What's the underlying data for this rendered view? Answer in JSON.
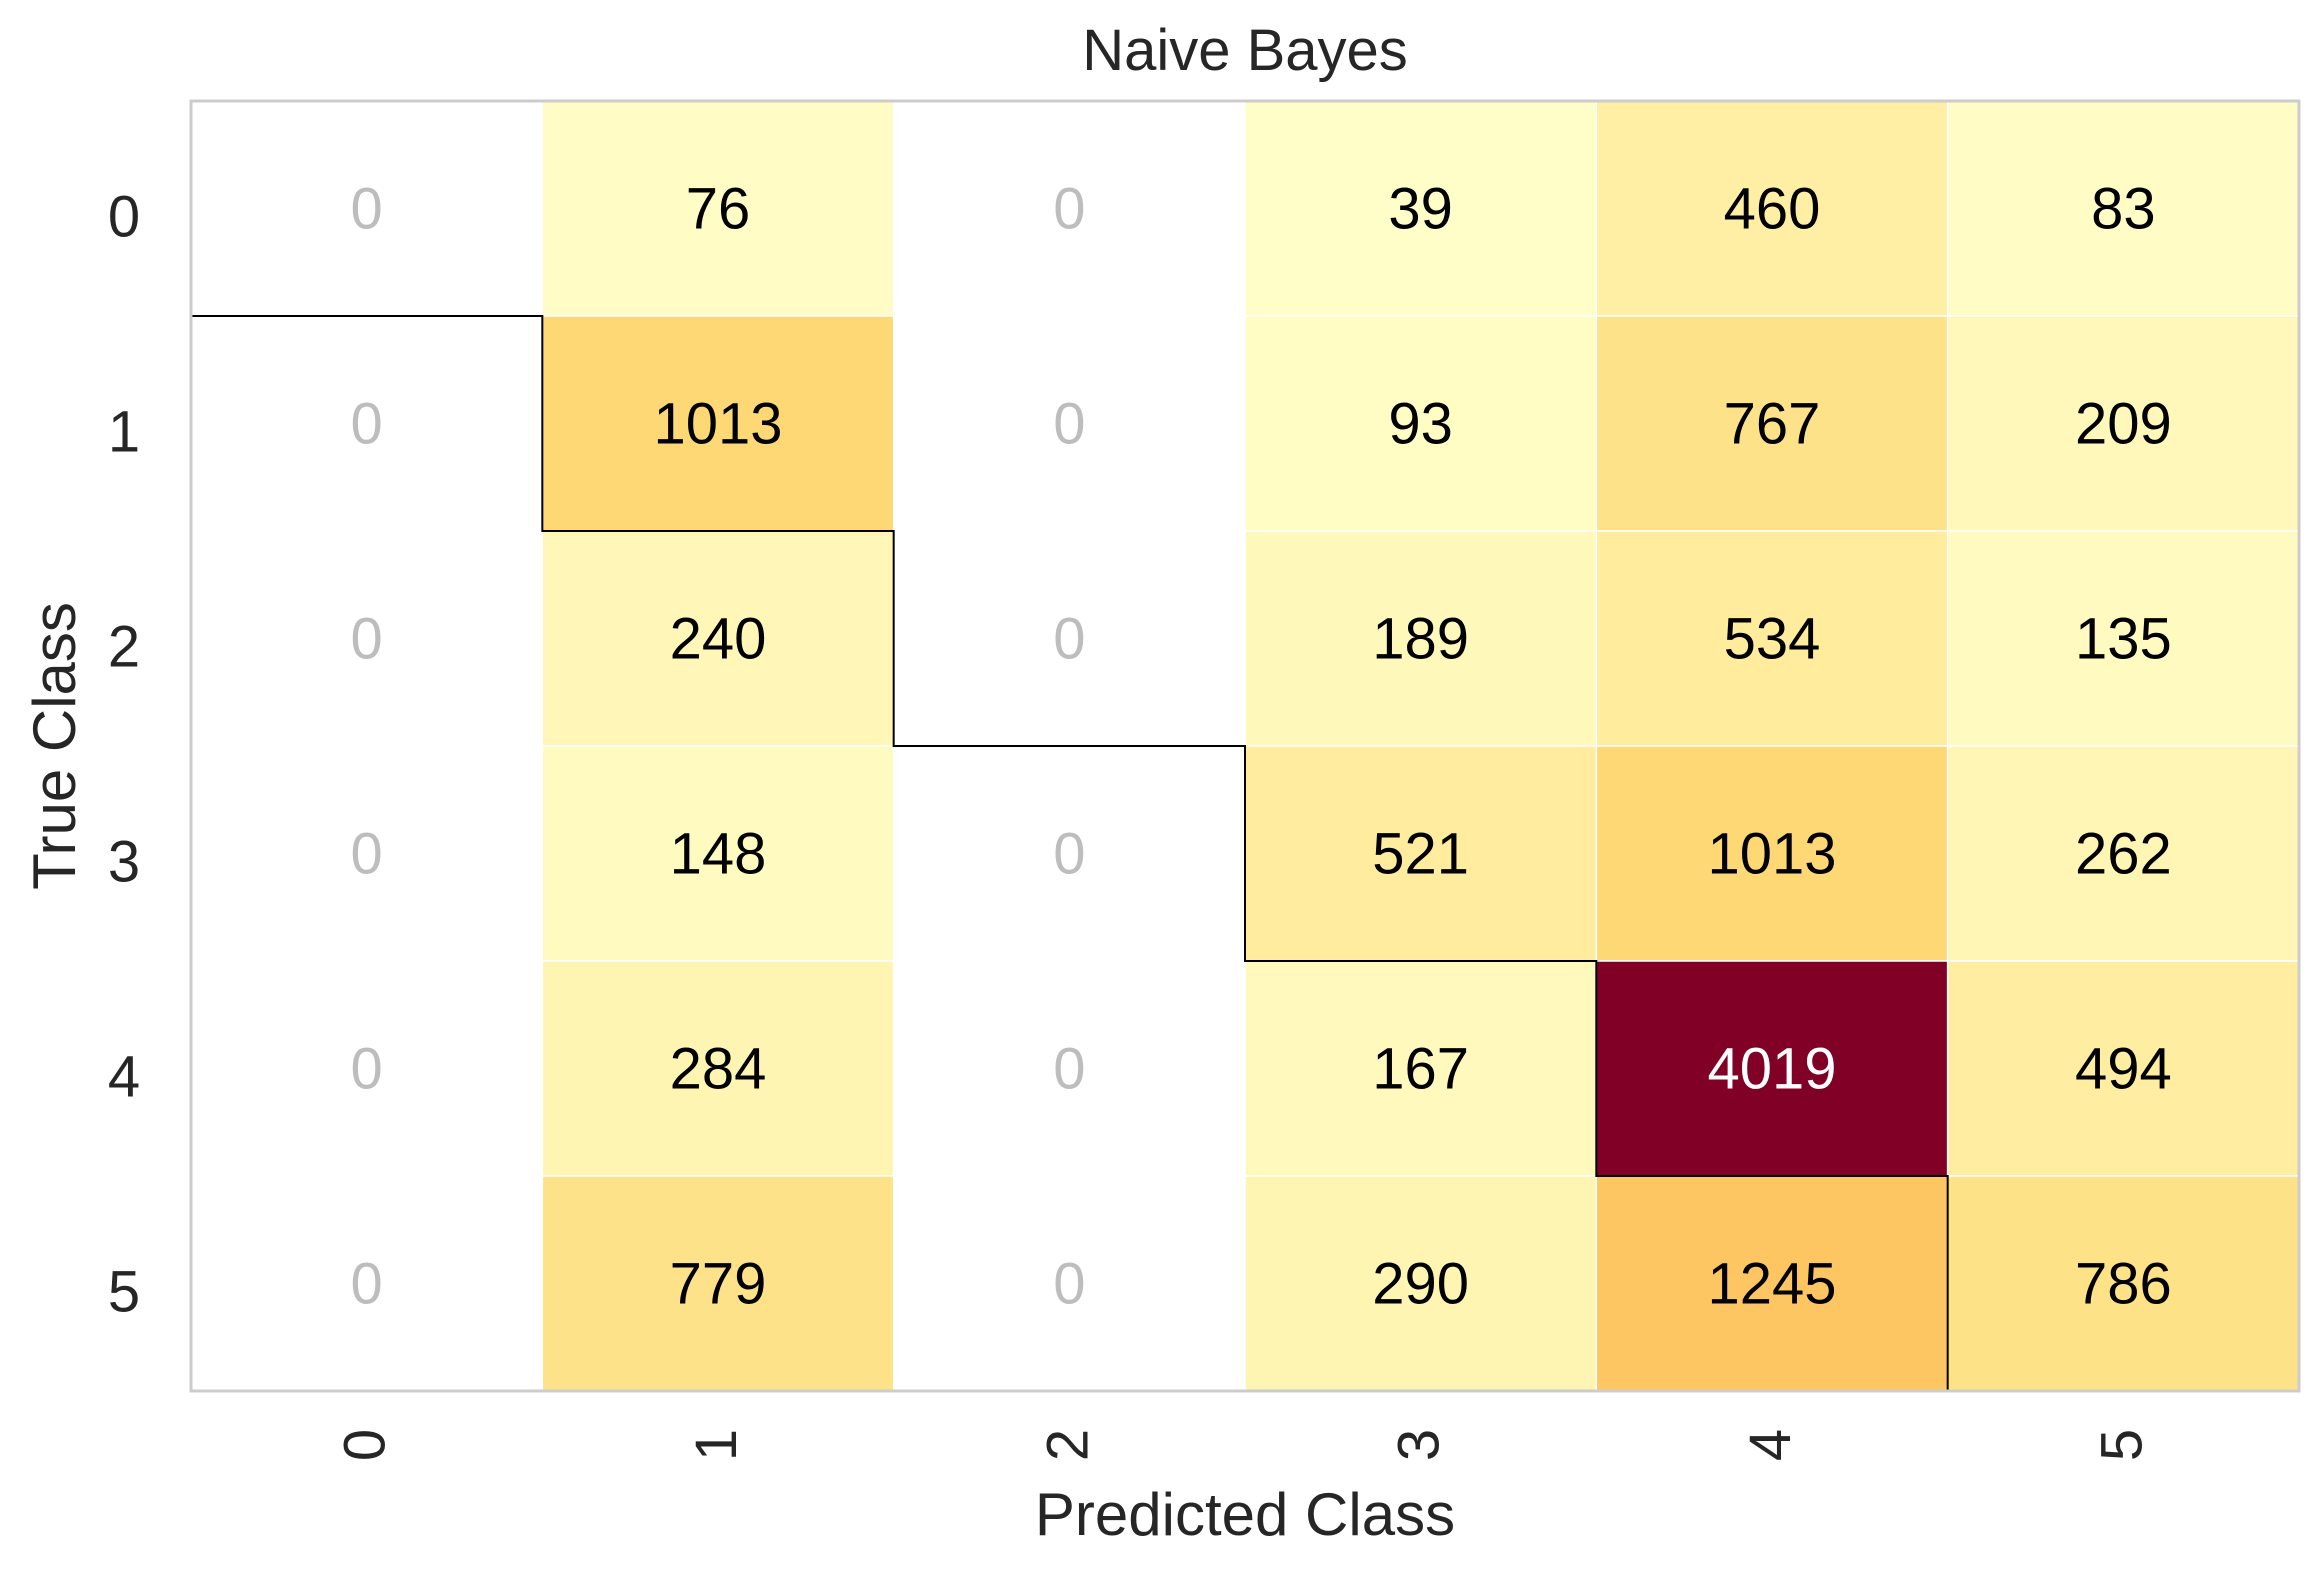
{
  "chart_data": {
    "type": "heatmap",
    "title": "Naive Bayes",
    "xlabel": "Predicted Class",
    "ylabel": "True Class",
    "x_categories": [
      "0",
      "1",
      "2",
      "3",
      "4",
      "5"
    ],
    "y_categories": [
      "0",
      "1",
      "2",
      "3",
      "4",
      "5"
    ],
    "values": [
      [
        0,
        76,
        0,
        39,
        460,
        83
      ],
      [
        0,
        1013,
        0,
        93,
        767,
        209
      ],
      [
        0,
        240,
        0,
        189,
        534,
        135
      ],
      [
        0,
        148,
        0,
        521,
        1013,
        262
      ],
      [
        0,
        284,
        0,
        167,
        4019,
        494
      ],
      [
        0,
        779,
        0,
        290,
        1245,
        786
      ]
    ],
    "colormap": "YlOrRd",
    "zero_text_color": "#bdbdbd",
    "text_color": "#000000",
    "high_text_color": "#ffffff",
    "max_color": "#800026",
    "grid": false,
    "x_tick_rotation": "vertical"
  }
}
